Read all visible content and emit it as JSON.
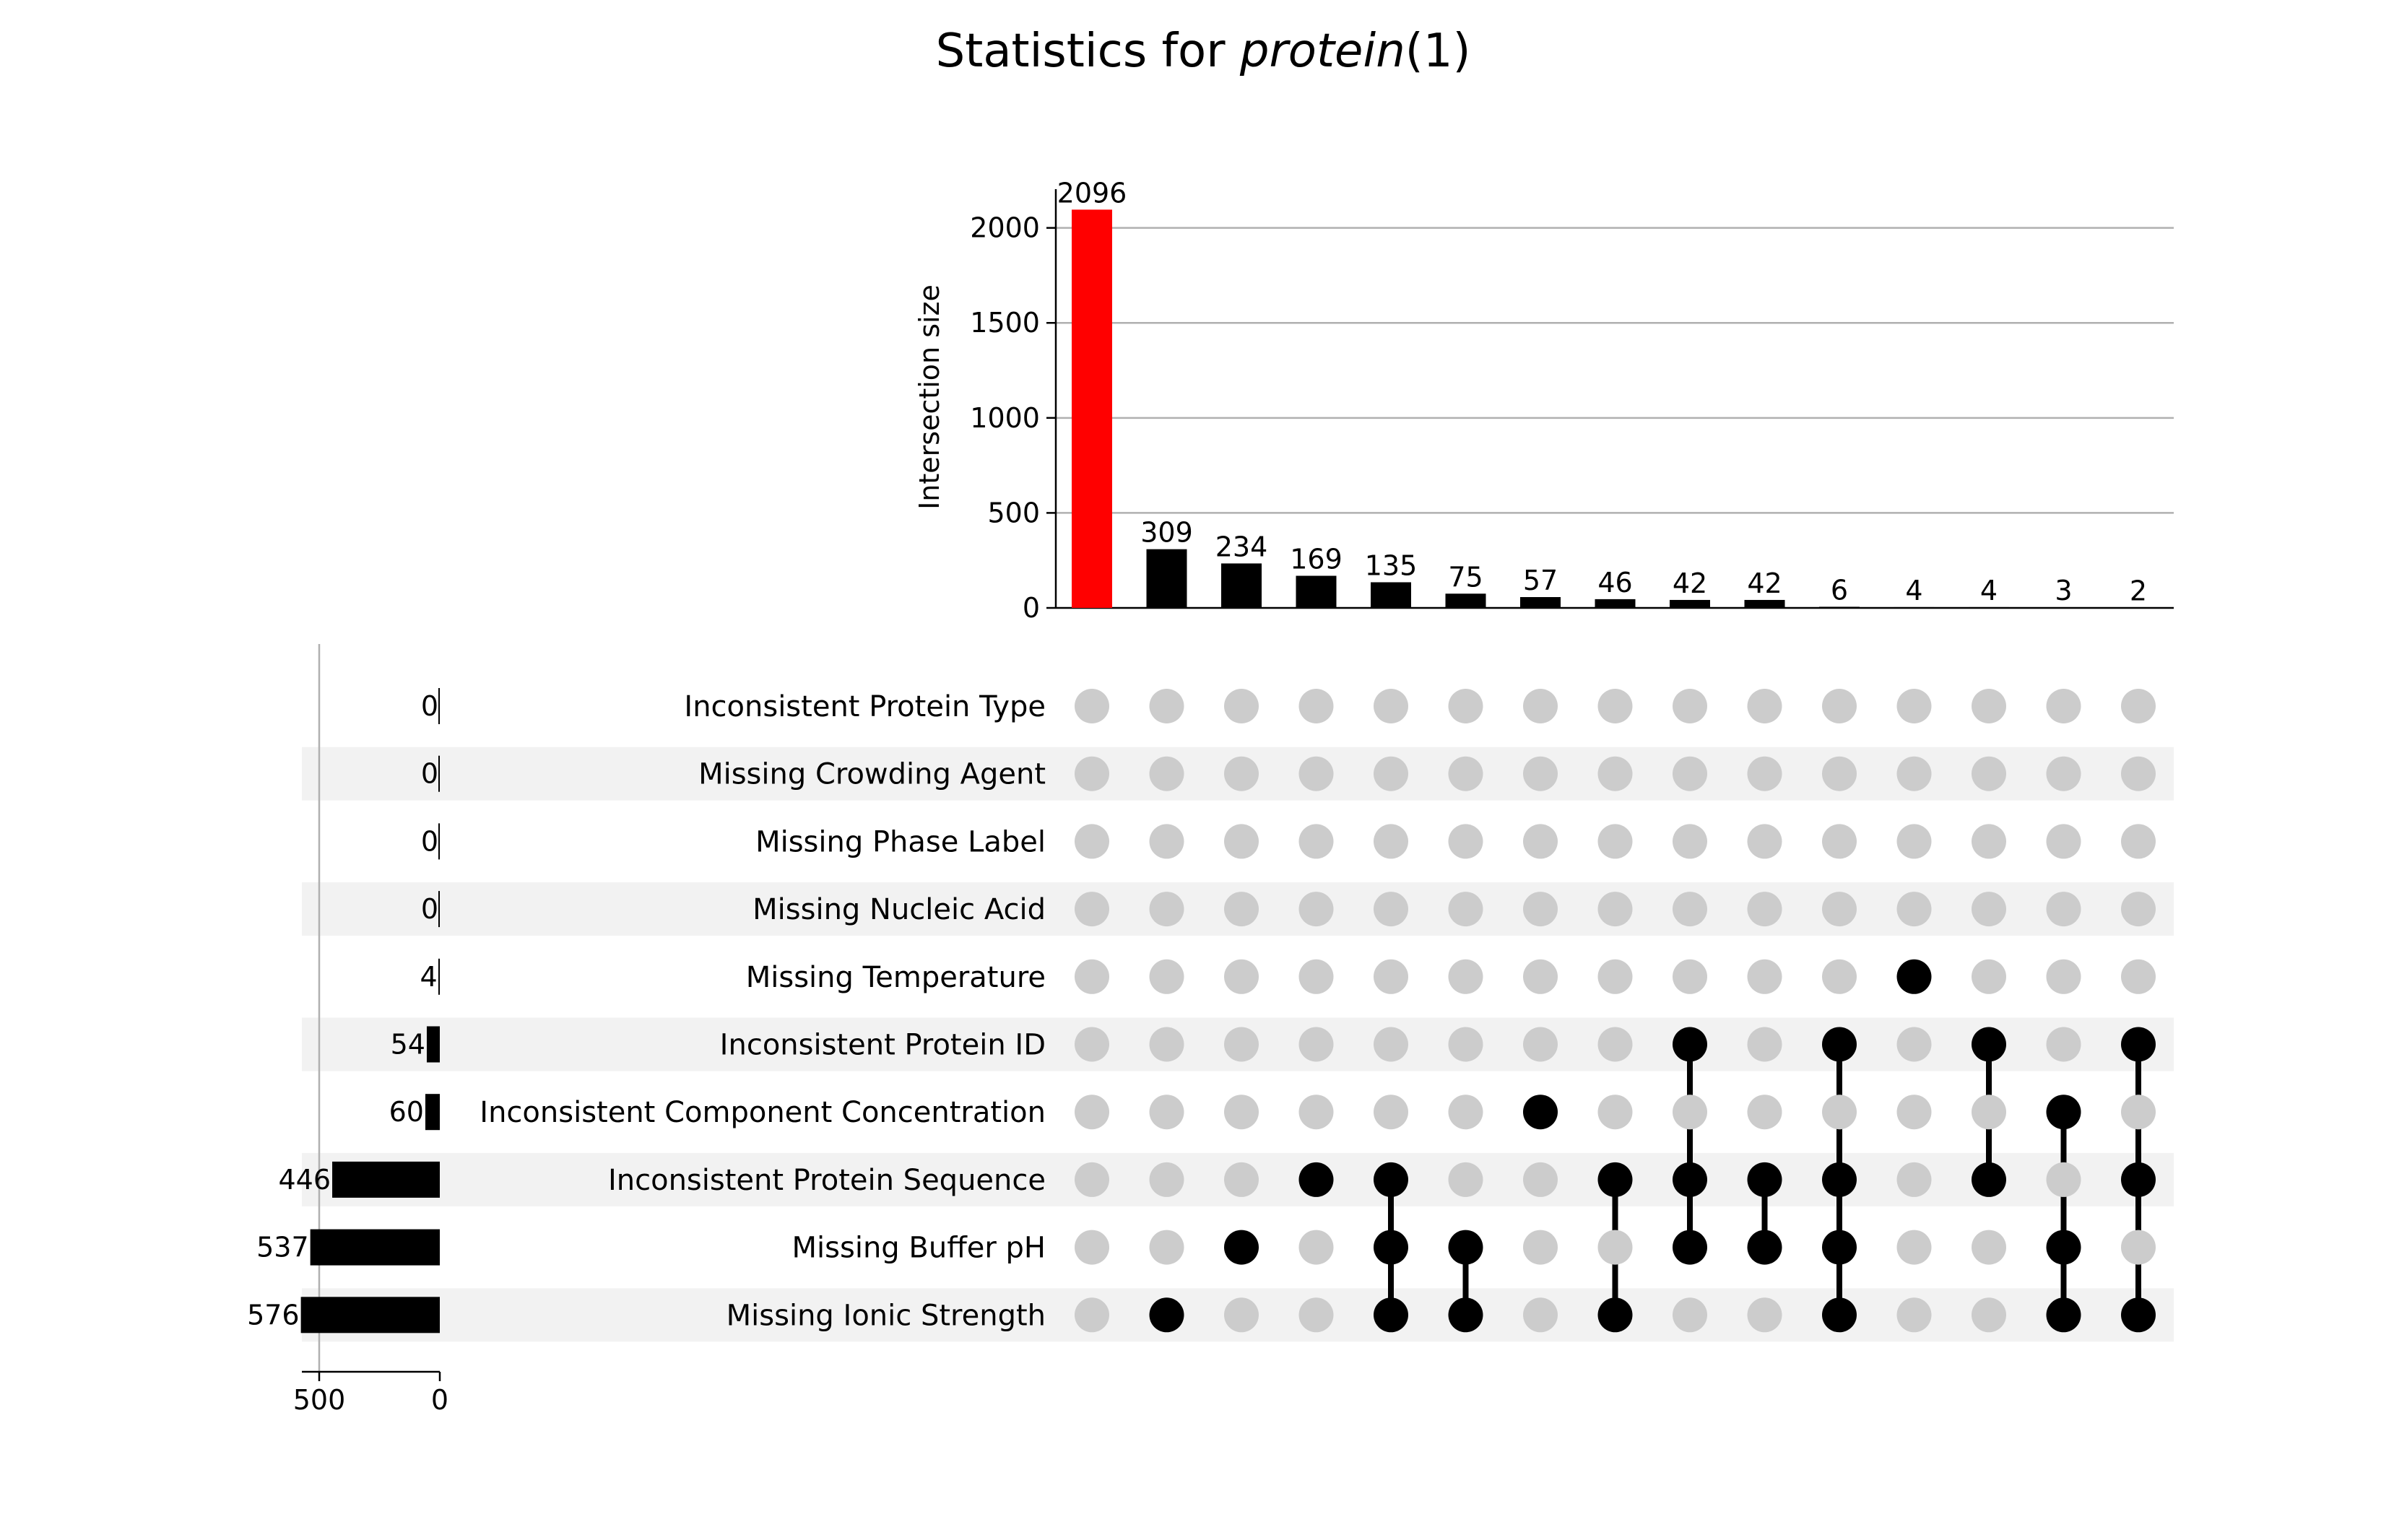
{
  "chart_data": {
    "type": "upset",
    "title": {
      "prefix": "Statistics for ",
      "italic": "protein",
      "suffix": "(1)"
    },
    "intersection_axis": {
      "ylabel": "Intersection size",
      "ylim": [
        0,
        2200
      ],
      "yticks": [
        0,
        500,
        1000,
        1500,
        2000
      ],
      "grid": true
    },
    "set_size_axis": {
      "xlim_reversed": [
        600,
        0
      ],
      "xticks": [
        500,
        0
      ]
    },
    "sets": [
      {
        "name": "Inconsistent Protein Type",
        "size": 0
      },
      {
        "name": "Missing Crowding Agent",
        "size": 0
      },
      {
        "name": "Missing Phase Label",
        "size": 0
      },
      {
        "name": "Missing Nucleic Acid",
        "size": 0
      },
      {
        "name": "Missing Temperature",
        "size": 4
      },
      {
        "name": "Inconsistent Protein ID",
        "size": 54
      },
      {
        "name": "Inconsistent Component Concentration",
        "size": 60
      },
      {
        "name": "Inconsistent Protein Sequence",
        "size": 446
      },
      {
        "name": "Missing Buffer pH",
        "size": 537
      },
      {
        "name": "Missing Ionic Strength",
        "size": 576
      }
    ],
    "intersections": [
      {
        "size": 2096,
        "members": [],
        "highlight": true
      },
      {
        "size": 309,
        "members": [
          "Missing Ionic Strength"
        ]
      },
      {
        "size": 234,
        "members": [
          "Missing Buffer pH"
        ]
      },
      {
        "size": 169,
        "members": [
          "Inconsistent Protein Sequence"
        ]
      },
      {
        "size": 135,
        "members": [
          "Inconsistent Protein Sequence",
          "Missing Buffer pH",
          "Missing Ionic Strength"
        ]
      },
      {
        "size": 75,
        "members": [
          "Missing Buffer pH",
          "Missing Ionic Strength"
        ]
      },
      {
        "size": 57,
        "members": [
          "Inconsistent Component Concentration"
        ]
      },
      {
        "size": 46,
        "members": [
          "Inconsistent Protein Sequence",
          "Missing Ionic Strength"
        ]
      },
      {
        "size": 42,
        "members": [
          "Inconsistent Protein ID",
          "Inconsistent Protein Sequence",
          "Missing Buffer pH"
        ]
      },
      {
        "size": 42,
        "members": [
          "Inconsistent Protein Sequence",
          "Missing Buffer pH"
        ]
      },
      {
        "size": 6,
        "members": [
          "Inconsistent Protein ID",
          "Inconsistent Protein Sequence",
          "Missing Buffer pH",
          "Missing Ionic Strength"
        ]
      },
      {
        "size": 4,
        "members": [
          "Missing Temperature"
        ]
      },
      {
        "size": 4,
        "members": [
          "Inconsistent Protein ID",
          "Inconsistent Protein Sequence"
        ]
      },
      {
        "size": 3,
        "members": [
          "Inconsistent Component Concentration",
          "Missing Buffer pH",
          "Missing Ionic Strength"
        ]
      },
      {
        "size": 2,
        "members": [
          "Inconsistent Protein ID",
          "Inconsistent Protein Sequence",
          "Missing Ionic Strength"
        ]
      }
    ],
    "colors": {
      "highlight_bar": "#ff0000",
      "bar": "#000000",
      "dot_active": "#000000",
      "dot_inactive": "#cccccc",
      "stripe": "#f2f2f2",
      "grid": "#b0b0b0"
    }
  }
}
